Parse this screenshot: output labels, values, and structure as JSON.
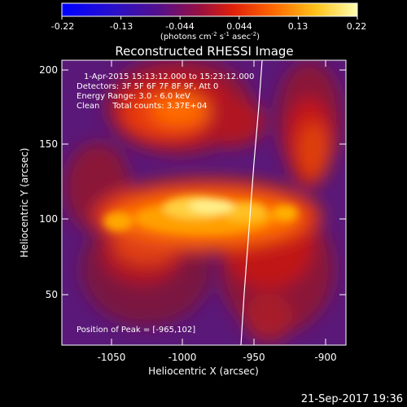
{
  "colorbar": {
    "tick_labels": [
      "-0.22",
      "-0.13",
      "-0.044",
      "0.044",
      "0.13",
      "0.22"
    ],
    "units_prefix": "(photons cm",
    "units_exp1": "-2",
    "units_mid": " s",
    "units_exp2": "-1",
    "units_mid2": " asec",
    "units_exp3": "-2",
    "units_suffix": ")"
  },
  "plot": {
    "title": "Reconstructed RHESSI Image",
    "info_lines": [
      "1-Apr-2015 15:13:12.000 to 15:23:12.000",
      "Detectors: 3F 5F 6F 7F 8F 9F, Att 0",
      "Energy Range: 3.0 - 6.0 keV",
      "Clean     Total counts: 3.37E+04"
    ],
    "peak_text": "Position of Peak = [-965,102]",
    "xlabel": "Heliocentric X (arcsec)",
    "ylabel": "Heliocentric Y (arcsec)",
    "x_ticks": [
      "-1050",
      "-1000",
      "-950",
      "-900"
    ],
    "y_ticks": [
      "50",
      "100",
      "150",
      "200"
    ]
  },
  "footer": {
    "timestamp": "21-Sep-2017 19:36"
  }
}
